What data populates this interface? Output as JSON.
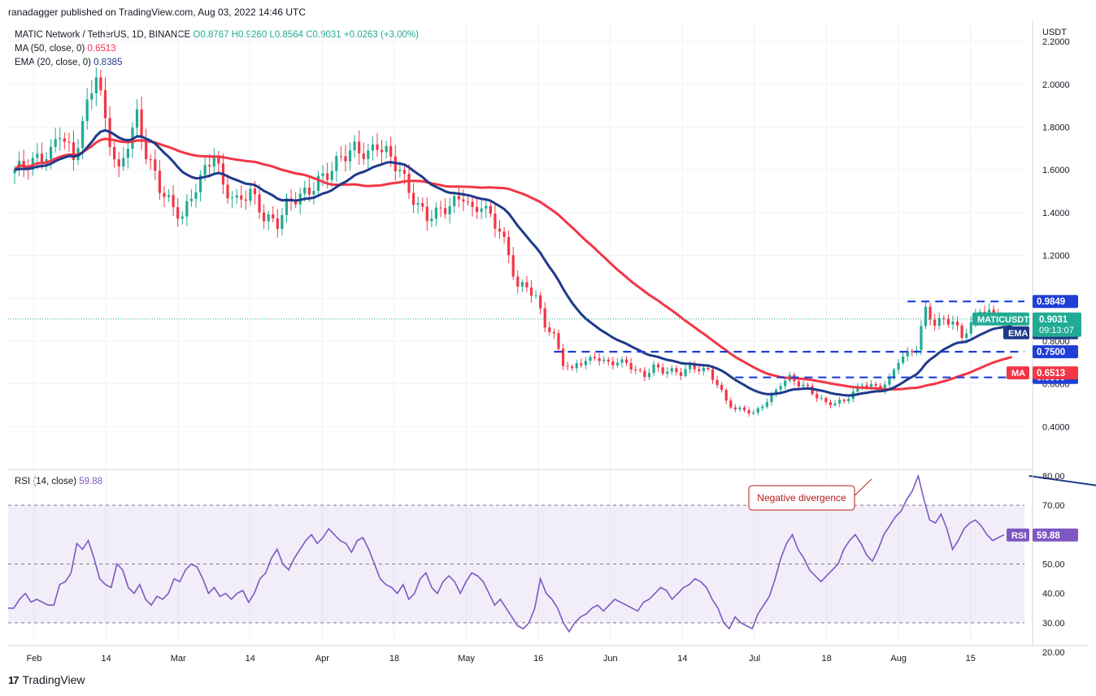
{
  "publisher": "ranadagger published on TradingView.com, Aug 03, 2022 14:46 UTC",
  "legend": {
    "symbol": "MATIC Network / TetherUS, 1D, BINANCE",
    "open": "O0.8767",
    "high": "H0.9260",
    "low": "L0.8564",
    "close": "C0.9031",
    "change": "+0.0263 (+3.00%)",
    "ma_label": "MA (50, close, 0)",
    "ma_value": "0.6513",
    "ema_label": "EMA (20, close, 0)",
    "ema_value": "0.8385"
  },
  "rsi_legend": {
    "label": "RSI (14, close)",
    "value": "59.88"
  },
  "y_axis_title": "USDT",
  "footer": {
    "brand": "TradingView"
  },
  "colors": {
    "up": "#22ab94",
    "down": "#f23645",
    "ema": "#1e3a8a",
    "ma": "#f23645",
    "rsi": "#7e57c2",
    "level": "#1f3fd6"
  },
  "chart_data": [
    {
      "type": "candlestick",
      "title": "MATIC Network / TetherUS, 1D, BINANCE",
      "yunit": "USDT",
      "ylim": [
        0.2,
        2.28
      ],
      "y_ticks": [
        "2.2000",
        "2.0000",
        "1.8000",
        "1.6000",
        "1.4000",
        "1.2000",
        "1.0000",
        "0.8000",
        "0.6000",
        "0.4000"
      ],
      "x_ticks": [
        "Feb",
        "14",
        "Mar",
        "14",
        "Apr",
        "18",
        "May",
        "16",
        "Jun",
        "14",
        "Jul",
        "18",
        "Aug",
        "15"
      ],
      "anchors": [
        [
          0,
          1.6
        ],
        [
          8,
          1.68
        ],
        [
          10,
          1.78
        ],
        [
          13,
          1.65
        ],
        [
          16,
          1.9
        ],
        [
          18,
          2.06
        ],
        [
          20,
          1.82
        ],
        [
          23,
          1.58
        ],
        [
          25,
          1.73
        ],
        [
          27,
          1.85
        ],
        [
          29,
          1.68
        ],
        [
          32,
          1.52
        ],
        [
          35,
          1.42
        ],
        [
          37,
          1.38
        ],
        [
          40,
          1.52
        ],
        [
          42,
          1.6
        ],
        [
          44,
          1.68
        ],
        [
          46,
          1.52
        ],
        [
          49,
          1.45
        ],
        [
          52,
          1.5
        ],
        [
          55,
          1.38
        ],
        [
          58,
          1.35
        ],
        [
          60,
          1.44
        ],
        [
          63,
          1.48
        ],
        [
          65,
          1.5
        ],
        [
          67,
          1.55
        ],
        [
          69,
          1.58
        ],
        [
          72,
          1.66
        ],
        [
          75,
          1.7
        ],
        [
          78,
          1.67
        ],
        [
          80,
          1.72
        ],
        [
          82,
          1.68
        ],
        [
          85,
          1.6
        ],
        [
          87,
          1.5
        ],
        [
          89,
          1.43
        ],
        [
          91,
          1.38
        ],
        [
          93,
          1.4
        ],
        [
          95,
          1.42
        ],
        [
          97,
          1.45
        ],
        [
          99,
          1.48
        ],
        [
          101,
          1.4
        ],
        [
          103,
          1.44
        ],
        [
          105,
          1.38
        ],
        [
          107,
          1.32
        ],
        [
          109,
          1.2
        ],
        [
          111,
          1.05
        ],
        [
          113,
          1.06
        ],
        [
          115,
          1.0
        ],
        [
          117,
          0.88
        ],
        [
          119,
          0.82
        ],
        [
          121,
          0.7
        ],
        [
          123,
          0.66
        ],
        [
          124,
          0.7
        ],
        [
          126,
          0.7
        ],
        [
          128,
          0.73
        ],
        [
          130,
          0.7
        ],
        [
          132,
          0.7
        ],
        [
          135,
          0.7
        ],
        [
          137,
          0.66
        ],
        [
          139,
          0.64
        ],
        [
          141,
          0.68
        ],
        [
          143,
          0.66
        ],
        [
          145,
          0.66
        ],
        [
          147,
          0.65
        ],
        [
          149,
          0.68
        ],
        [
          151,
          0.67
        ],
        [
          153,
          0.66
        ],
        [
          155,
          0.6
        ],
        [
          157,
          0.52
        ],
        [
          159,
          0.48
        ],
        [
          161,
          0.48
        ],
        [
          163,
          0.46
        ],
        [
          165,
          0.5
        ],
        [
          167,
          0.54
        ],
        [
          169,
          0.6
        ],
        [
          171,
          0.63
        ],
        [
          173,
          0.6
        ],
        [
          175,
          0.58
        ],
        [
          177,
          0.54
        ],
        [
          179,
          0.51
        ],
        [
          181,
          0.51
        ],
        [
          183,
          0.52
        ],
        [
          185,
          0.56
        ],
        [
          187,
          0.6
        ],
        [
          189,
          0.59
        ],
        [
          191,
          0.58
        ],
        [
          193,
          0.62
        ],
        [
          195,
          0.71
        ],
        [
          197,
          0.74
        ],
        [
          199,
          0.77
        ],
        [
          201,
          0.95
        ],
        [
          203,
          0.88
        ],
        [
          205,
          0.9
        ],
        [
          207,
          0.89
        ],
        [
          209,
          0.82
        ],
        [
          211,
          0.88
        ],
        [
          213,
          0.95
        ],
        [
          215,
          0.93
        ],
        [
          217,
          0.92
        ],
        [
          219,
          0.87
        ],
        [
          220,
          0.903
        ]
      ],
      "ema20": {
        "name": "EMA",
        "value_label": "0.8385"
      },
      "ma50": {
        "name": "MA",
        "value_label": "0.6513"
      },
      "price_label": {
        "name": "MATICUSDT",
        "value": "0.9031",
        "countdown": "09:13:07"
      },
      "levels": [
        {
          "label": "0.9849",
          "value": 0.9849,
          "from_index": 197
        },
        {
          "label": "0.7500",
          "value": 0.75,
          "from_index": 119
        },
        {
          "label": "0.6300",
          "value": 0.63,
          "from_index": 159
        }
      ]
    },
    {
      "type": "line",
      "title": "RSI (14, close)",
      "ylim": [
        20,
        80
      ],
      "y_ticks": [
        "80.00",
        "70.00",
        "60.00",
        "50.00",
        "40.00",
        "30.00",
        "20.00"
      ],
      "band": [
        30,
        70
      ],
      "midline": 50,
      "values": [
        35,
        35,
        38,
        40,
        37,
        38,
        37,
        36,
        36,
        43,
        44,
        47,
        57,
        55,
        58,
        52,
        45,
        43,
        42,
        50,
        48,
        42,
        40,
        43,
        38,
        36,
        39,
        38,
        40,
        45,
        44,
        48,
        50,
        49,
        45,
        40,
        42,
        39,
        40,
        38,
        40,
        41,
        37,
        40,
        45,
        47,
        52,
        55,
        50,
        48,
        52,
        55,
        58,
        60,
        57,
        59,
        62,
        60,
        58,
        57,
        54,
        58,
        59,
        55,
        50,
        45,
        43,
        42,
        40,
        43,
        38,
        40,
        45,
        47,
        42,
        40,
        44,
        46,
        44,
        40,
        44,
        47,
        46,
        44,
        40,
        36,
        38,
        35,
        32,
        29,
        28,
        30,
        35,
        45,
        40,
        38,
        35,
        30,
        27,
        30,
        32,
        33,
        35,
        36,
        34,
        36,
        38,
        37,
        36,
        35,
        34,
        37,
        38,
        40,
        42,
        41,
        38,
        40,
        42,
        43,
        45,
        44,
        42,
        38,
        35,
        30,
        28,
        32,
        30,
        29,
        28,
        33,
        36,
        39,
        45,
        52,
        57,
        60,
        55,
        52,
        48,
        46,
        44,
        46,
        48,
        50,
        55,
        58,
        60,
        57,
        53,
        51,
        55,
        60,
        63,
        66,
        68,
        72,
        75,
        80,
        72,
        65,
        64,
        67,
        62,
        55,
        58,
        62,
        64,
        65,
        63,
        60,
        58,
        59,
        60
      ],
      "last_label": "59.88",
      "annotation": "Negative divergence",
      "trendline": {
        "from": [
          159,
          80
        ],
        "to": [
          219,
          59
        ]
      }
    }
  ]
}
